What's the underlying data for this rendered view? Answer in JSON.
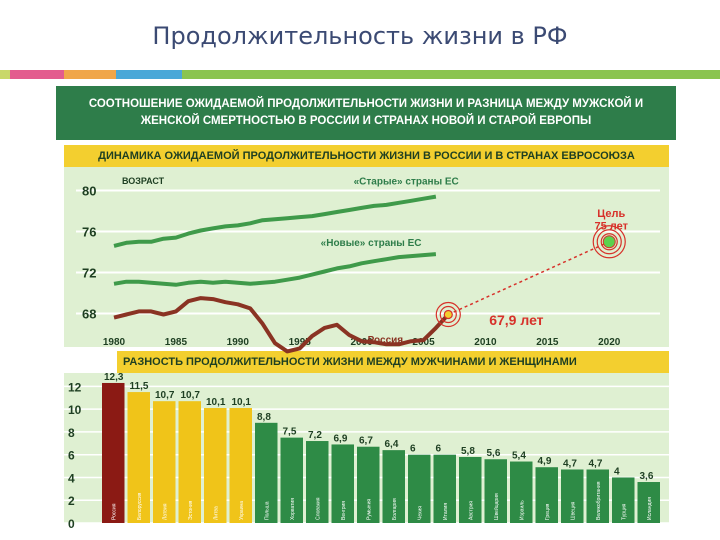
{
  "page_title": "Продолжительность жизни в РФ",
  "banner": {
    "line1": "СООТНОШЕНИЕ ОЖИДАЕМОЙ ПРОДОЛЖИТЕЛЬНОСТИ ЖИЗНИ И РАЗНИЦА МЕЖДУ МУЖСКОЙ И",
    "line2": "ЖЕНСКОЙ СМЕРТНОСТЬЮ В РОССИИ И СТРАНАХ НОВОЙ И СТАРОЙ ЕВРОПЫ"
  },
  "colors": {
    "green_dark": "#2e7d4a",
    "green_line": "#3f9a4a",
    "brown_line": "#8a3323",
    "yellow": "#f3cf2f",
    "panel_bg": "#dff0d2",
    "red_bar": "#8b1a14",
    "yellow_bar": "#f0c419",
    "green_bar": "#2e8b46",
    "target": "#d7312a"
  },
  "strip_colors": [
    "#c9d86a",
    "#e35c8e",
    "#f0a64a",
    "#4aa8d8",
    "#8ac44f"
  ],
  "chart_data": [
    {
      "type": "line",
      "title": "ДИНАМИКА ОЖИДАЕМОЙ ПРОДОЛЖИТЕЛЬНОСТИ ЖИЗНИ В РОССИИ И В СТРАНАХ ЕВРОСОЮЗА",
      "ylabel": "ВОЗРАСТ",
      "ylim": [
        66,
        82
      ],
      "xlim": [
        1980,
        2022
      ],
      "yticks": [
        68,
        72,
        76,
        80
      ],
      "xticks": [
        1980,
        1985,
        1990,
        1995,
        2000,
        2005,
        2010,
        2015,
        2020
      ],
      "series": [
        {
          "name": "«Старые» страны ЕС",
          "x": [
            1980,
            1981,
            1982,
            1983,
            1984,
            1985,
            1986,
            1987,
            1988,
            1989,
            1990,
            1991,
            1992,
            1993,
            1994,
            1995,
            1996,
            1997,
            1998,
            1999,
            2000,
            2001,
            2002,
            2003,
            2004,
            2005,
            2006
          ],
          "y": [
            74.6,
            74.9,
            75.0,
            75.0,
            75.3,
            75.4,
            75.8,
            76.1,
            76.3,
            76.5,
            76.6,
            76.8,
            77.1,
            77.2,
            77.3,
            77.4,
            77.5,
            77.7,
            77.9,
            78.1,
            78.3,
            78.5,
            78.6,
            78.8,
            79.0,
            79.2,
            79.4
          ]
        },
        {
          "name": "«Новые» страны ЕС",
          "x": [
            1980,
            1981,
            1982,
            1983,
            1984,
            1985,
            1986,
            1987,
            1988,
            1989,
            1990,
            1991,
            1992,
            1993,
            1994,
            1995,
            1996,
            1997,
            1998,
            1999,
            2000,
            2001,
            2002,
            2003,
            2004,
            2005,
            2006
          ],
          "y": [
            70.9,
            71.1,
            71.1,
            71.0,
            70.9,
            70.8,
            71.0,
            71.1,
            71.0,
            71.1,
            71.0,
            70.9,
            71.0,
            71.1,
            71.3,
            71.5,
            71.8,
            72.1,
            72.4,
            72.6,
            72.9,
            73.1,
            73.3,
            73.5,
            73.6,
            73.7,
            73.8
          ]
        },
        {
          "name": "Россия",
          "x": [
            1980,
            1981,
            1982,
            1983,
            1984,
            1985,
            1986,
            1987,
            1988,
            1989,
            1990,
            1991,
            1992,
            1993,
            1994,
            1995,
            1996,
            1997,
            1998,
            1999,
            2000,
            2001,
            2002,
            2003,
            2004,
            2005,
            2006,
            2007
          ],
          "y": [
            67.6,
            67.9,
            68.2,
            68.2,
            67.9,
            68.2,
            69.2,
            69.5,
            69.4,
            69.1,
            68.9,
            68.5,
            67.0,
            65.1,
            64.3,
            64.6,
            65.8,
            66.6,
            66.9,
            65.9,
            65.3,
            65.2,
            65.0,
            65.0,
            65.3,
            65.4,
            66.6,
            67.9
          ]
        }
      ],
      "projection": {
        "from": [
          2007,
          67.9
        ],
        "to": [
          2020,
          75.0
        ]
      },
      "annotations": {
        "target": "Цель\n75 лет",
        "current": "67,9 лет"
      }
    },
    {
      "type": "bar",
      "title": "РАЗНОСТЬ ПРОДОЛЖИТЕЛЬНОСТИ ЖИЗНИ МЕЖДУ МУЖЧИНАМИ И ЖЕНЩИНАМИ",
      "ylim": [
        0,
        13
      ],
      "yticks": [
        0,
        2,
        4,
        6,
        8,
        10,
        12
      ],
      "categories": [
        "Россия",
        "Белоруссия",
        "Латвия",
        "Эстония",
        "Литва",
        "Украина",
        "Польша",
        "Хорватия",
        "Словакия",
        "Венгрия",
        "Румыния",
        "Болгария",
        "Чехия",
        "Италия",
        "Австрия",
        "Швейцария",
        "Израиль",
        "Греция",
        "Швеция",
        "Великобритания",
        "Турция",
        "Исландия"
      ],
      "labels": [
        "12,3",
        "11,5",
        "10,7",
        "10,7",
        "10,1",
        "10,1",
        "8,8",
        "7,5",
        "7,2",
        "6,9",
        "6,7",
        "6,4",
        "6",
        "6",
        "5,8",
        "5,6",
        "5,4",
        "4,9",
        "4,7",
        "4,7",
        "4",
        "3,6"
      ],
      "values": [
        12.3,
        11.5,
        10.7,
        10.7,
        10.1,
        10.1,
        8.8,
        7.5,
        7.2,
        6.9,
        6.7,
        6.4,
        6,
        6,
        5.8,
        5.6,
        5.4,
        4.9,
        4.7,
        4.7,
        4,
        3.6
      ]
    }
  ]
}
